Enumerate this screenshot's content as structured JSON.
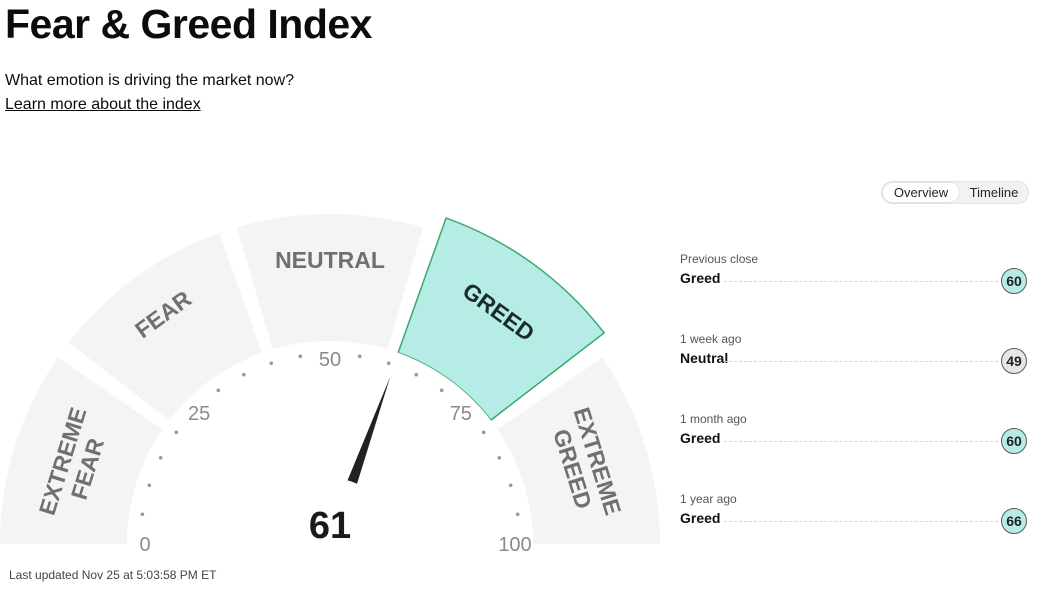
{
  "page": {
    "title": "Fear & Greed Index",
    "subtitle": "What emotion is driving the market now?",
    "learn_link": "Learn more about the index",
    "last_updated": "Last updated Nov 25 at 5:03:58 PM ET"
  },
  "toggle": {
    "overview": "Overview",
    "timeline": "Timeline",
    "selected": "Overview"
  },
  "gauge": {
    "value": 61,
    "value_label": "61",
    "segments": [
      {
        "label_lines": [
          "EXTREME",
          "FEAR"
        ]
      },
      {
        "label_lines": [
          "FEAR"
        ]
      },
      {
        "label_lines": [
          "NEUTRAL"
        ]
      },
      {
        "label_lines": [
          "GREED"
        ],
        "active": true
      },
      {
        "label_lines": [
          "EXTREME",
          "GREED"
        ]
      }
    ],
    "ticks": [
      "0",
      "25",
      "50",
      "75",
      "100"
    ],
    "colors": {
      "segment": "#f4f4f4",
      "active_fill": "#b6ece6",
      "active_stroke": "#3aa86d",
      "needle": "#222222",
      "label": "#707070"
    }
  },
  "history": [
    {
      "label": "Previous close",
      "rating": "Greed",
      "value": "60",
      "color": "#b6ece6"
    },
    {
      "label": "1 week ago",
      "rating": "Neutral",
      "value": "49",
      "color": "#e6e6e6"
    },
    {
      "label": "1 month ago",
      "rating": "Greed",
      "value": "60",
      "color": "#b6ece6"
    },
    {
      "label": "1 year ago",
      "rating": "Greed",
      "value": "66",
      "color": "#b6ece6"
    }
  ]
}
